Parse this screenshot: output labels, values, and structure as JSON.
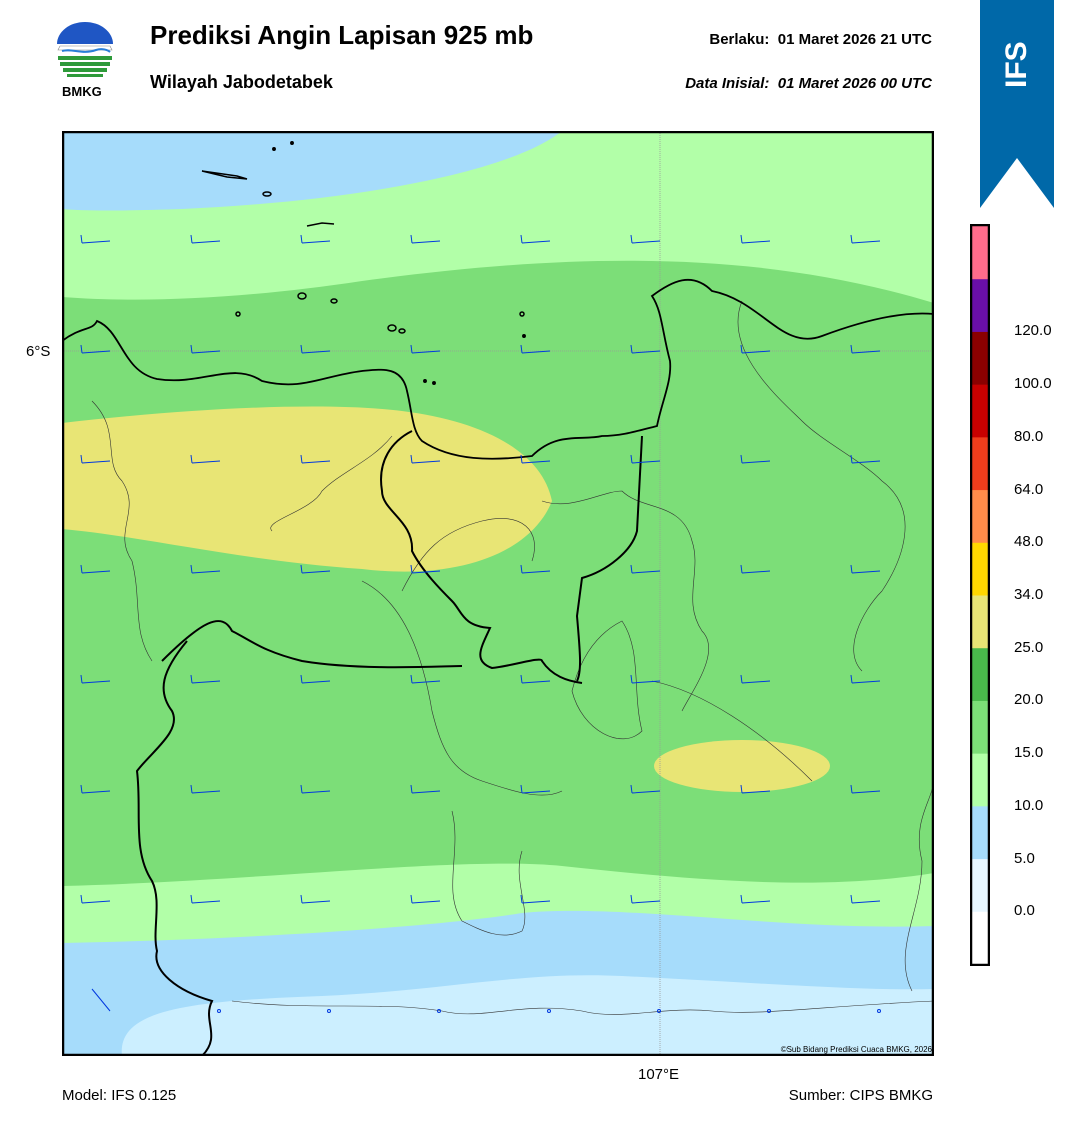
{
  "header": {
    "title": "Prediksi Angin Lapisan 925 mb",
    "subtitle": "Wilayah Jabodetabek",
    "valid_label": "Berlaku:",
    "valid_time": "01 Maret 2026 21 UTC",
    "init_label": "Data Inisial:",
    "init_time": "01 Maret 2026 00 UTC"
  },
  "logo": {
    "text": "BMKG",
    "icon": "bmkg-logo"
  },
  "model_badge": {
    "text": "IFS",
    "color": "#0068a8"
  },
  "map": {
    "lat_label": "6°S",
    "lon_label": "107°E",
    "copyright": "©Sub Bidang Prediksi Cuaca BMKG, 2026"
  },
  "colorbar": {
    "ticks": [
      "0.0",
      "5.0",
      "10.0",
      "15.0",
      "20.0",
      "25.0",
      "34.0",
      "48.0",
      "64.0",
      "80.0",
      "100.0",
      "120.0"
    ],
    "colors": [
      "#ffffff",
      "#e6f6ff",
      "#a6dcfb",
      "#b2ffa8",
      "#7cde78",
      "#49b84b",
      "#e8e575",
      "#ffd700",
      "#ff8c4a",
      "#ee3d1c",
      "#c80000",
      "#8b0000",
      "#6a0fa8",
      "#ff6c8c"
    ]
  },
  "footer": {
    "model": "Model: IFS 0.125",
    "source": "Sumber: CIPS BMKG"
  }
}
